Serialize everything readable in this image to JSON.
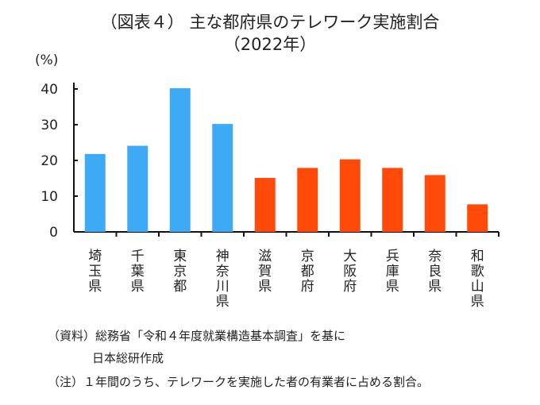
{
  "chart_data": {
    "type": "bar",
    "title": "（図表４） 主な都府県のテレワーク実施割合",
    "subtitle": "（2022年）",
    "ylabel": "(%)",
    "xlabel": "",
    "ylim": [
      0,
      40
    ],
    "yticks": [
      "0",
      "10",
      "20",
      "30",
      "40"
    ],
    "categories": [
      "埼玉県",
      "千葉県",
      "東京都",
      "神奈川県",
      "滋賀県",
      "京都府",
      "大阪府",
      "兵庫県",
      "奈良県",
      "和歌山県"
    ],
    "values": [
      21.8,
      24.1,
      40.2,
      30.2,
      15.1,
      17.9,
      20.3,
      17.9,
      15.9,
      7.7
    ],
    "colors": [
      "#3eaaf5",
      "#3eaaf5",
      "#3eaaf5",
      "#3eaaf5",
      "#ff4a0a",
      "#ff4a0a",
      "#ff4a0a",
      "#ff4a0a",
      "#ff4a0a",
      "#ff4a0a"
    ],
    "grid": false
  },
  "notes": {
    "source_label": "（資料）",
    "source_line1": "総務省「令和４年度就業構造基本調査」を基に",
    "source_line2": "日本総研作成",
    "note_label": "（注）",
    "note_text": "１年間のうち、テレワークを実施した者の有業者に占める割合。"
  }
}
